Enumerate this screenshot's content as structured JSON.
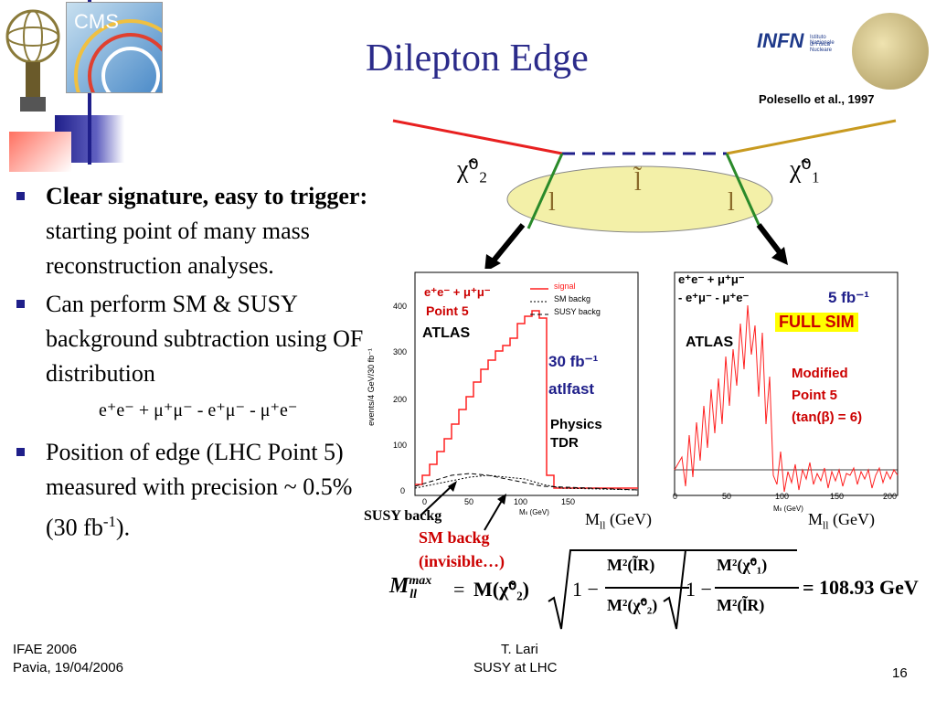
{
  "title": "Dilepton Edge",
  "reference": "Polesello et al., 1997",
  "logos": {
    "cms": "CMS",
    "infn": "INFN",
    "infn_sub1": "Istituto Nazionale",
    "infn_sub2": "di Fisica Nucleare"
  },
  "bullets": [
    {
      "bold": "Clear signature, easy to trigger:",
      "text": " starting point of many mass reconstruction analyses."
    },
    {
      "bold": "",
      "text": "Can perform SM & SUSY background subtraction using OF distribution"
    },
    {
      "bold": "",
      "text": "Position of edge (LHC Point 5) measured with precision ~ 0.5% (30 fb"
    }
  ],
  "bullet3_sup": "-1",
  "bullet3_tail": ").",
  "of_formula": "e⁺e⁻ + μ⁺μ⁻ - e⁺μ⁻ - μ⁺e⁻",
  "diagram": {
    "chi2": "χ̃⁰₂",
    "chi1": "χ̃⁰₁",
    "slepton": "l̃",
    "lep_left": "l",
    "lep_right": "l"
  },
  "plot1": {
    "leg_signal": "signal",
    "leg_sm": "SM backg",
    "leg_susy": "SUSY backg",
    "chan": "e⁺e⁻ + μ⁺μ⁻",
    "point": "Point 5",
    "atlas": "ATLAS",
    "lumi": "30 fb⁻¹",
    "sim": "atlfast",
    "tdr1": "Physics",
    "tdr2": "TDR",
    "ylabel": "events/4 GeV/30 fb⁻¹",
    "xlabel": "Mₗₗ (GeV)",
    "yticks": [
      "400",
      "300",
      "200",
      "100",
      "0"
    ],
    "xticks": [
      "0",
      "50",
      "100",
      "150"
    ]
  },
  "plot2": {
    "chan1": "e⁺e⁻ + μ⁺μ⁻",
    "chan2": "- e⁺μ⁻ - μ⁺e⁻",
    "atlas": "ATLAS",
    "lumi": "5 fb⁻¹",
    "fullsim": "FULL SIM",
    "mod1": "Modified",
    "mod2": "Point 5",
    "mod3": "(tan(β) = 6)",
    "xlabel": "Mₗₗ (GeV)",
    "xticks": [
      "0",
      "50",
      "100",
      "150",
      "200"
    ]
  },
  "axis_labels": {
    "m1": "M",
    "m1_sub": "ll",
    "m1_unit": " (GeV)",
    "m2": "M",
    "m2_sub": "ll",
    "m2_unit": " (GeV)"
  },
  "annotations": {
    "susy_backg": "SUSY backg",
    "sm_backg": "SM backg",
    "invisible": "(invisible…)"
  },
  "equation": {
    "lhs": "M",
    "lhs_sup": "max",
    "lhs_sub": "ll",
    "eq": "=",
    "m": "M(χ̃⁰₂)",
    "frac1_num": "M²(l̃R)",
    "frac1_den": "M²(χ̃⁰₂)",
    "frac2_num": "M²(χ̃⁰₁)",
    "frac2_den": "M²(l̃R)",
    "one": "1 −",
    "result": "= 108.93 GeV"
  },
  "footer": {
    "left1": "IFAE 2006",
    "left2": "Pavia, 19/04/2006",
    "center1": "T. Lari",
    "center2": "SUSY at LHC",
    "page": "16"
  },
  "colors": {
    "title": "#2b2b8a",
    "accent_red": "#e8392b",
    "accent_blue": "#1f1f8a",
    "signal": "#ff2020",
    "ellipse": "#f3f0a8"
  }
}
